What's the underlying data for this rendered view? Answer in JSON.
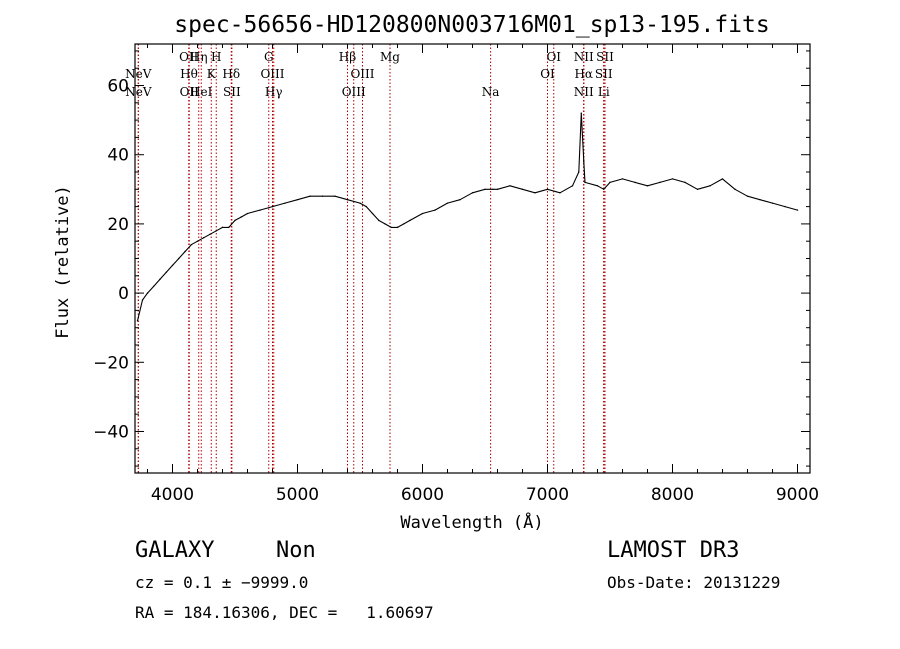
{
  "chart_data": {
    "type": "line",
    "title": "spec-56656-HD120800N003716M01_sp13-195.fits",
    "xlabel": "Wavelength (Å)",
    "ylabel": "Flux (relative)",
    "xlim": [
      3700,
      9100
    ],
    "ylim": [
      -52,
      72
    ],
    "xticks": [
      4000,
      5000,
      6000,
      7000,
      8000,
      9000
    ],
    "xtick_labels": [
      "4000",
      "5000",
      "6000",
      "7000",
      "8000",
      "9000"
    ],
    "yticks": [
      -40,
      -20,
      0,
      20,
      40,
      60
    ],
    "ytick_labels": [
      "−40",
      "−20",
      "0",
      "20",
      "40",
      "60"
    ],
    "grid": false,
    "series": [
      {
        "color": "#000000",
        "x": [
          3720,
          3760,
          3800,
          3850,
          3900,
          3950,
          4000,
          4050,
          4100,
          4150,
          4200,
          4250,
          4300,
          4350,
          4400,
          4450,
          4500,
          4550,
          4600,
          4700,
          4800,
          4900,
          5000,
          5100,
          5200,
          5300,
          5400,
          5500,
          5550,
          5600,
          5650,
          5700,
          5750,
          5800,
          5850,
          5900,
          6000,
          6100,
          6200,
          6300,
          6400,
          6500,
          6563,
          6600,
          6700,
          6800,
          6900,
          7000,
          7100,
          7200,
          7250,
          7270,
          7290,
          7300,
          7400,
          7450,
          7500,
          7600,
          7700,
          7800,
          7900,
          8000,
          8100,
          8200,
          8300,
          8400,
          8500,
          8600,
          8700,
          8800,
          8900,
          9000
        ],
        "y": [
          -8,
          -2,
          0,
          2,
          4,
          6,
          8,
          10,
          12,
          14,
          15,
          16,
          17,
          18,
          19,
          19,
          21,
          22,
          23,
          24,
          25,
          26,
          27,
          28,
          28,
          28,
          27,
          26,
          25,
          23,
          21,
          20,
          19,
          19,
          20,
          21,
          23,
          24,
          26,
          27,
          29,
          30,
          30,
          30,
          31,
          30,
          29,
          30,
          29,
          31,
          35,
          52,
          38,
          32,
          31,
          30,
          32,
          33,
          32,
          31,
          32,
          33,
          32,
          30,
          31,
          33,
          30,
          28,
          27,
          26,
          25,
          24
        ]
      }
    ],
    "lines": [
      {
        "label": "NeV",
        "x": 3726,
        "row": 1
      },
      {
        "label": "NeV",
        "x": 3727,
        "row": 2
      },
      {
        "label": "OII",
        "x": 4130,
        "row": 0
      },
      {
        "label": "Hθ",
        "x": 4132,
        "row": 1
      },
      {
        "label": "OII",
        "x": 4134,
        "row": 2
      },
      {
        "label": "Hη",
        "x": 4210,
        "row": 0
      },
      {
        "label": "HeI",
        "x": 4230,
        "row": 2
      },
      {
        "label": "K",
        "x": 4310,
        "row": 1
      },
      {
        "label": "H",
        "x": 4350,
        "row": 0
      },
      {
        "label": "Hδ",
        "x": 4470,
        "row": 1
      },
      {
        "label": "SII",
        "x": 4475,
        "row": 2
      },
      {
        "label": "G",
        "x": 4770,
        "row": 0
      },
      {
        "label": "OIII",
        "x": 4800,
        "row": 1
      },
      {
        "label": "Hγ",
        "x": 4810,
        "row": 2
      },
      {
        "label": "Hβ",
        "x": 5400,
        "row": 0
      },
      {
        "label": "OIII",
        "x": 5520,
        "row": 1
      },
      {
        "label": "OIII",
        "x": 5450,
        "row": 2
      },
      {
        "label": "Mg",
        "x": 5740,
        "row": 0
      },
      {
        "label": "Na",
        "x": 6545,
        "row": 2
      },
      {
        "label": "OI",
        "x": 7050,
        "row": 0
      },
      {
        "label": "OI",
        "x": 7000,
        "row": 1
      },
      {
        "label": "NII",
        "x": 7290,
        "row": 0
      },
      {
        "label": "Hα",
        "x": 7290,
        "row": 1
      },
      {
        "label": "NII",
        "x": 7290,
        "row": 2
      },
      {
        "label": "SII",
        "x": 7460,
        "row": 0
      },
      {
        "label": "SII",
        "x": 7450,
        "row": 1
      },
      {
        "label": "Li",
        "x": 7450,
        "row": 2
      }
    ]
  },
  "footer": {
    "class_label": "GALAXY",
    "subclass_label": "Non",
    "survey_label": "LAMOST DR3",
    "cz_text": "cz = 0.1 ± −9999.0",
    "obsdate_text": "Obs-Date: 20131229",
    "radec_text": "RA = 184.16306, DEC =   1.60697"
  }
}
